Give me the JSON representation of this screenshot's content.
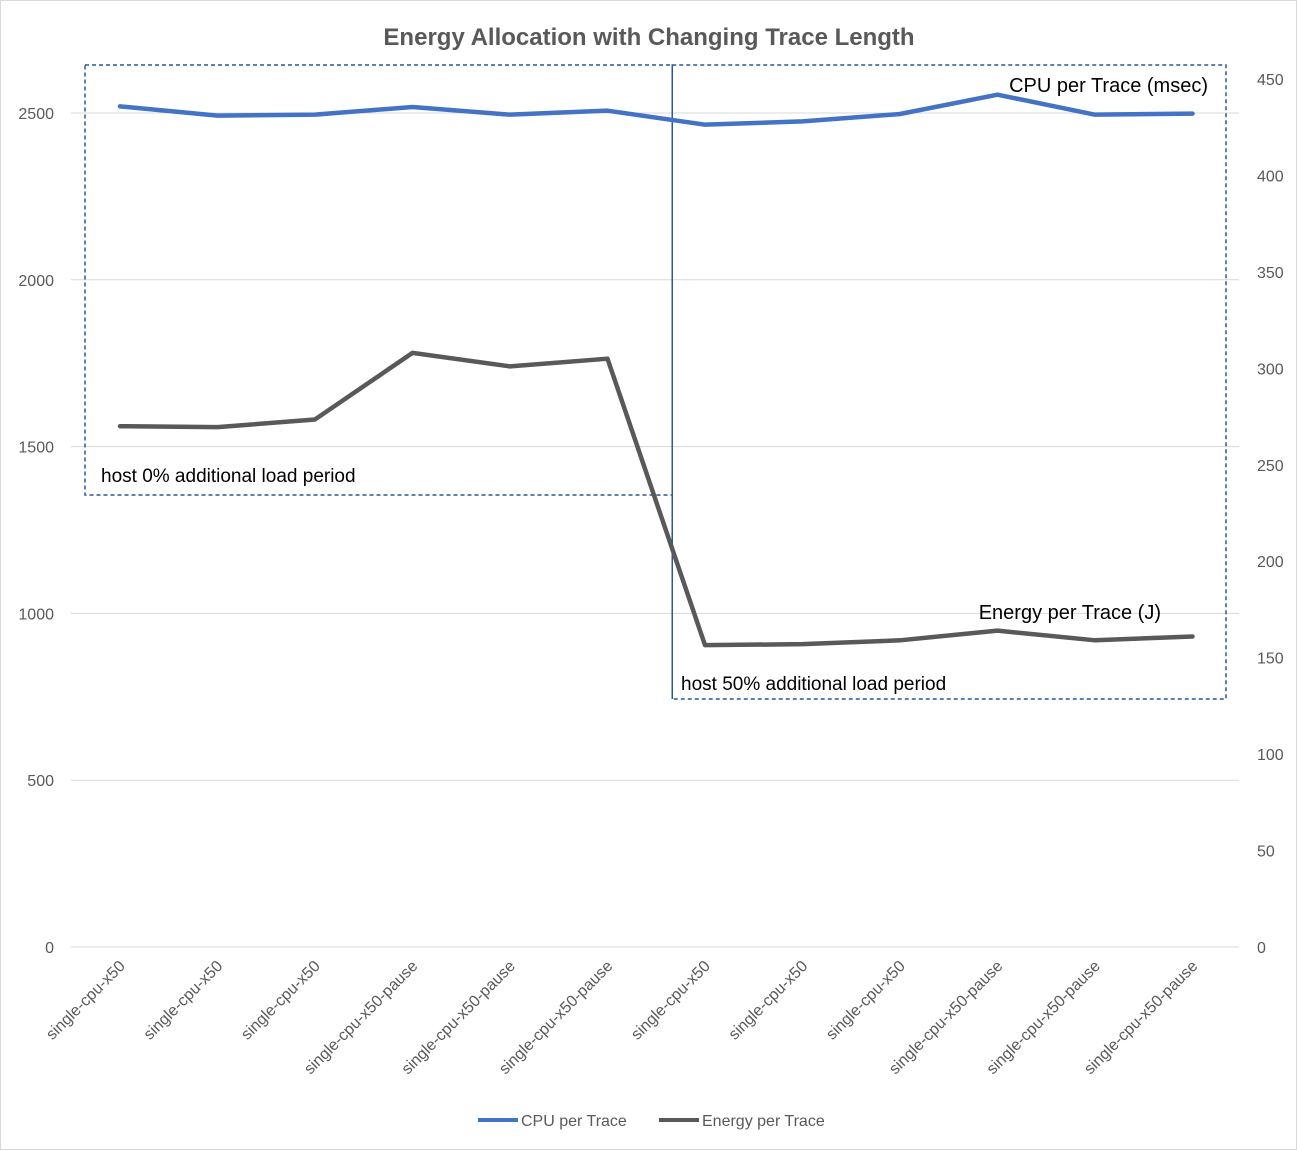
{
  "chart_data": {
    "type": "line",
    "title": "Energy Allocation with Changing Trace Length",
    "categories": [
      "single-cpu-x50",
      "single-cpu-x50",
      "single-cpu-x50",
      "single-cpu-x50-pause",
      "single-cpu-x50-pause",
      "single-cpu-x50-pause",
      "single-cpu-x50",
      "single-cpu-x50",
      "single-cpu-x50",
      "single-cpu-x50-pause",
      "single-cpu-x50-pause",
      "single-cpu-x50-pause"
    ],
    "series": [
      {
        "name": "CPU per Trace",
        "axis": "left",
        "color": "#4472C4",
        "values": [
          2520,
          2492,
          2495,
          2518,
          2495,
          2507,
          2465,
          2475,
          2497,
          2555,
          2495,
          2498
        ]
      },
      {
        "name": "Energy per Trace",
        "axis": "right",
        "color": "#595959",
        "values": [
          270,
          269.5,
          273.5,
          308,
          301,
          305,
          156.5,
          157,
          159,
          164,
          159,
          161
        ]
      }
    ],
    "y_left": {
      "min": 0,
      "max": 2600,
      "ticks": [
        0,
        500,
        1000,
        1500,
        2000,
        2500
      ]
    },
    "y_right": {
      "min": 0,
      "max": 460,
      "ticks": [
        0,
        50,
        100,
        150,
        200,
        250,
        300,
        350,
        400,
        450
      ]
    },
    "grid": true,
    "legend_position": "bottom",
    "annotations": {
      "period_0": "host 0% additional load period",
      "period_50": "host 50% additional load period",
      "cpu_label": "CPU per Trace (msec)",
      "energy_label": "Energy per Trace (J)"
    }
  }
}
